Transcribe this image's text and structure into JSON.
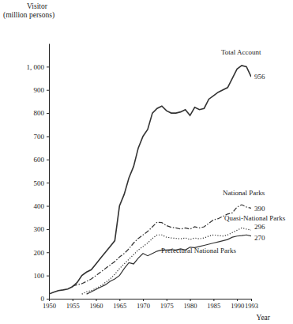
{
  "chart_data": {
    "type": "line",
    "ylabel": "Visitor (million persons)",
    "xlabel": "Year",
    "x": [
      1950,
      1951,
      1952,
      1953,
      1954,
      1955,
      1956,
      1957,
      1958,
      1959,
      1960,
      1961,
      1962,
      1963,
      1964,
      1965,
      1966,
      1967,
      1968,
      1969,
      1970,
      1971,
      1972,
      1973,
      1974,
      1975,
      1976,
      1977,
      1978,
      1979,
      1980,
      1981,
      1982,
      1983,
      1984,
      1985,
      1986,
      1987,
      1988,
      1989,
      1990,
      1991,
      1992,
      1993
    ],
    "xlim": [
      1950,
      1993
    ],
    "xticks": [
      1950,
      1955,
      1960,
      1965,
      1970,
      1975,
      1980,
      1985,
      1990,
      1993
    ],
    "ylim": [
      0,
      1100
    ],
    "yticks": [
      0,
      100,
      200,
      300,
      400,
      500,
      600,
      700,
      800,
      900,
      {
        "value": 1000,
        "label": "1, 000"
      }
    ],
    "series": [
      {
        "name": "Total Account",
        "color": "#333333",
        "line_style": "solid",
        "values": [
          20,
          28,
          35,
          38,
          42,
          52,
          70,
          100,
          115,
          125,
          150,
          175,
          200,
          225,
          250,
          400,
          450,
          520,
          570,
          650,
          700,
          730,
          800,
          820,
          830,
          810,
          800,
          800,
          805,
          815,
          790,
          825,
          815,
          820,
          860,
          875,
          890,
          900,
          910,
          950,
          990,
          1005,
          1000,
          956
        ]
      },
      {
        "name": "National Parks",
        "color": "#333333",
        "line_style": "dashdot",
        "values": [
          null,
          null,
          null,
          null,
          null,
          55,
          60,
          65,
          75,
          85,
          100,
          115,
          130,
          145,
          160,
          180,
          195,
          215,
          240,
          260,
          275,
          290,
          310,
          330,
          328,
          315,
          308,
          305,
          300,
          305,
          300,
          310,
          305,
          310,
          325,
          340,
          345,
          355,
          365,
          370,
          395,
          405,
          395,
          390
        ]
      },
      {
        "name": "Quasi-National Parks",
        "color": "#333333",
        "line_style": "dotted",
        "values": [
          null,
          null,
          null,
          null,
          null,
          null,
          null,
          20,
          30,
          35,
          45,
          55,
          70,
          85,
          105,
          130,
          150,
          170,
          190,
          210,
          225,
          240,
          260,
          275,
          275,
          265,
          262,
          260,
          258,
          262,
          255,
          262,
          258,
          262,
          270,
          275,
          272,
          270,
          275,
          285,
          295,
          305,
          300,
          296
        ]
      },
      {
        "name": "Prefectural National Parks",
        "color": "#333333",
        "line_style": "solid",
        "values": [
          null,
          null,
          null,
          null,
          null,
          null,
          null,
          null,
          20,
          30,
          40,
          50,
          60,
          75,
          85,
          100,
          130,
          155,
          150,
          175,
          195,
          185,
          195,
          205,
          210,
          210,
          212,
          210,
          215,
          210,
          222,
          220,
          225,
          230,
          235,
          240,
          245,
          250,
          255,
          265,
          270,
          272,
          275,
          270
        ]
      }
    ]
  }
}
